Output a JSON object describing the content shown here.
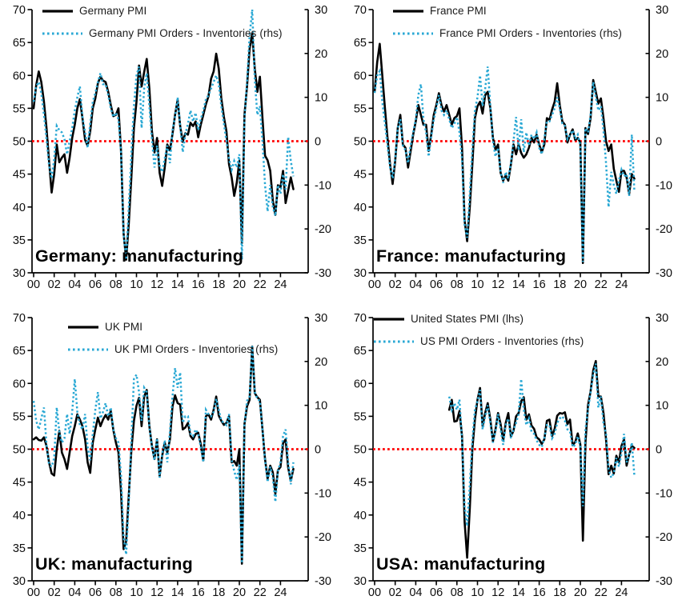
{
  "colors": {
    "pmi_line": "#000000",
    "orders_line": "#29A8D4",
    "reference_line": "#FF0000",
    "text": "#0d0d0d"
  },
  "panels": [
    {
      "id": "germany",
      "corner_label": "Germany: manufacturing",
      "legend": [
        "Germany PMI",
        "Germany PMI Orders - Inventories (rhs)"
      ]
    },
    {
      "id": "france",
      "corner_label": "France: manufacturing",
      "legend": [
        "France PMI",
        "France PMI Orders - Inventories (rhs)"
      ]
    },
    {
      "id": "uk",
      "corner_label": "UK: manufacturing",
      "legend": [
        "UK PMI",
        "UK PMI Orders - Inventories (rhs)"
      ]
    },
    {
      "id": "usa",
      "corner_label": "USA: manufacturing",
      "legend": [
        "United States PMI (lhs)",
        "US PMI Orders - Inventories (rhs)"
      ]
    }
  ],
  "chart_data": [
    {
      "type": "line",
      "title": "Germany: manufacturing",
      "x_start": 2000,
      "x_step": 0.25,
      "x_end": 2025.25,
      "left_axis": {
        "min": 30,
        "max": 70,
        "step": 5
      },
      "right_axis": {
        "min": -30,
        "max": 30,
        "step": 10
      },
      "x_ticks": {
        "start": 2000,
        "end": 2024,
        "step": 2,
        "labels": [
          "00",
          "02",
          "04",
          "06",
          "08",
          "10",
          "12",
          "14",
          "16",
          "18",
          "20",
          "22",
          "24"
        ]
      },
      "reference_line": {
        "axis": "left",
        "value": 50
      },
      "series": [
        {
          "name": "Germany PMI",
          "axis": "left",
          "style": "solid",
          "color": "#000000",
          "values": [
            55.0,
            58.5,
            60.6,
            59.0,
            56.0,
            52.0,
            47.0,
            42.2,
            45.0,
            49.5,
            46.8,
            47.5,
            48.0,
            45.2,
            47.5,
            50.5,
            52.5,
            55.0,
            56.4,
            53.5,
            50.2,
            49.3,
            51.5,
            55.0,
            56.5,
            58.8,
            59.8,
            59.2,
            59.0,
            57.5,
            55.5,
            53.8,
            54.0,
            55.0,
            48.5,
            36.0,
            32.0,
            37.5,
            44.5,
            52.0,
            56.0,
            61.5,
            58.3,
            60.5,
            62.5,
            58.0,
            51.5,
            48.3,
            50.5,
            45.2,
            43.2,
            46.0,
            49.5,
            48.6,
            51.1,
            54.0,
            56.3,
            52.3,
            49.9,
            51.2,
            51.0,
            52.8,
            52.3,
            53.0,
            50.6,
            52.5,
            54.0,
            55.6,
            56.8,
            59.5,
            60.6,
            63.3,
            61.0,
            56.5,
            53.7,
            51.5,
            46.5,
            44.5,
            41.7,
            43.7,
            47.0,
            34.5,
            54.0,
            58.3,
            64.0,
            66.4,
            61.0,
            57.5,
            59.8,
            53.5,
            47.8,
            47.1,
            45.5,
            41.0,
            38.8,
            43.3,
            43.0,
            45.5,
            40.6,
            42.5,
            44.5,
            42.7
          ]
        },
        {
          "name": "Germany PMI Orders - Inventories (rhs)",
          "axis": "right",
          "style": "dotted",
          "color": "#29A8D4",
          "values": [
            9.0,
            12.5,
            13.5,
            11.0,
            6.0,
            0.5,
            -5.5,
            -8.5,
            -4.0,
            3.5,
            2.5,
            2.0,
            0.5,
            -3.0,
            0.0,
            3.0,
            7.0,
            10.0,
            12.5,
            5.5,
            2.0,
            -1.5,
            4.0,
            9.0,
            11.0,
            13.5,
            15.5,
            13.0,
            13.0,
            10.5,
            7.5,
            5.5,
            6.5,
            5.0,
            -2.5,
            -21.0,
            -27.0,
            -15.0,
            -3.0,
            8.0,
            15.0,
            17.0,
            3.0,
            12.0,
            15.5,
            8.0,
            0.5,
            -6.0,
            -1.0,
            -5.5,
            -7.0,
            -4.0,
            -1.0,
            -5.0,
            2.5,
            5.5,
            10.0,
            3.5,
            -2.5,
            1.5,
            4.0,
            7.0,
            4.5,
            6.5,
            2.5,
            5.0,
            7.0,
            9.5,
            10.5,
            12.0,
            13.5,
            15.0,
            13.0,
            8.0,
            4.0,
            0.0,
            -4.0,
            -6.5,
            -4.5,
            -6.0,
            -3.0,
            -27.0,
            5.0,
            13.5,
            24.0,
            30.0,
            14.0,
            6.0,
            8.0,
            0.0,
            -10.0,
            -16.0,
            -10.0,
            -15.0,
            -17.0,
            -10.0,
            -12.0,
            -7.5,
            -11.0,
            1.0,
            -4.5,
            -8.0
          ]
        }
      ]
    },
    {
      "type": "line",
      "title": "France: manufacturing",
      "x_start": 2000,
      "x_step": 0.25,
      "x_end": 2025.25,
      "left_axis": {
        "min": 30,
        "max": 70,
        "step": 5
      },
      "right_axis": {
        "min": -30,
        "max": 30,
        "step": 10
      },
      "x_ticks": {
        "start": 2000,
        "end": 2024,
        "step": 2,
        "labels": [
          "00",
          "02",
          "04",
          "06",
          "08",
          "10",
          "12",
          "14",
          "16",
          "18",
          "20",
          "22",
          "24"
        ]
      },
      "reference_line": {
        "axis": "left",
        "value": 50
      },
      "series": [
        {
          "name": "France PMI",
          "axis": "left",
          "style": "solid",
          "color": "#000000",
          "values": [
            57.5,
            62.0,
            64.8,
            60.0,
            55.0,
            50.5,
            46.5,
            43.5,
            47.0,
            52.0,
            54.0,
            49.5,
            49.0,
            46.0,
            48.5,
            51.0,
            53.0,
            55.5,
            54.0,
            52.5,
            52.5,
            48.5,
            51.0,
            54.0,
            55.5,
            57.3,
            55.5,
            54.5,
            55.5,
            54.0,
            52.5,
            53.5,
            53.8,
            55.0,
            49.0,
            38.0,
            34.8,
            40.0,
            46.5,
            53.5,
            55.3,
            56.0,
            54.2,
            57.0,
            57.5,
            55.0,
            50.5,
            48.7,
            49.5,
            45.2,
            44.0,
            44.8,
            44.0,
            46.5,
            49.5,
            48.0,
            49.5,
            48.2,
            47.5,
            48.0,
            49.0,
            50.5,
            49.8,
            51.0,
            49.5,
            48.3,
            49.5,
            53.5,
            53.2,
            54.8,
            56.0,
            58.8,
            55.5,
            53.0,
            52.5,
            49.8,
            51.0,
            51.8,
            50.2,
            50.5,
            49.8,
            31.5,
            52.0,
            51.1,
            53.5,
            59.3,
            57.5,
            55.7,
            56.5,
            53.5,
            50.0,
            48.5,
            49.5,
            45.8,
            44.0,
            42.3,
            45.5,
            45.5,
            44.5,
            42.0,
            45.0,
            44.3
          ]
        },
        {
          "name": "France PMI Orders - Inventories (rhs)",
          "axis": "right",
          "style": "dotted",
          "color": "#29A8D4",
          "values": [
            11.0,
            15.0,
            16.0,
            9.0,
            4.0,
            -1.0,
            -6.0,
            -8.5,
            -4.0,
            3.0,
            5.0,
            -1.0,
            -2.0,
            -5.0,
            -1.0,
            2.0,
            5.0,
            10.5,
            13.0,
            5.0,
            2.0,
            -3.5,
            1.0,
            5.0,
            7.5,
            10.5,
            7.0,
            6.0,
            7.0,
            5.0,
            3.0,
            4.0,
            5.5,
            2.0,
            -4.0,
            -19.0,
            -22.0,
            -12.0,
            -2.0,
            7.0,
            10.0,
            15.0,
            8.0,
            12.0,
            17.0,
            8.0,
            0.0,
            -3.5,
            -1.5,
            -7.0,
            -9.5,
            -7.0,
            -8.5,
            -5.0,
            0.0,
            5.5,
            -2.0,
            5.0,
            -2.5,
            2.0,
            -1.0,
            1.5,
            0.5,
            2.0,
            -1.5,
            -3.0,
            0.5,
            4.5,
            4.5,
            6.0,
            7.5,
            10.0,
            7.5,
            4.0,
            3.5,
            0.5,
            1.5,
            2.5,
            0.5,
            1.5,
            -1.0,
            -27.5,
            3.0,
            2.0,
            6.0,
            13.5,
            10.0,
            7.0,
            8.0,
            2.5,
            -5.0,
            -15.0,
            -7.0,
            -10.0,
            -12.0,
            -9.0,
            -6.5,
            -8.0,
            -7.5,
            -12.5,
            1.5,
            -11.5
          ]
        }
      ]
    },
    {
      "type": "line",
      "title": "UK: manufacturing",
      "x_start": 2000,
      "x_step": 0.25,
      "x_end": 2025.25,
      "left_axis": {
        "min": 30,
        "max": 70,
        "step": 5
      },
      "right_axis": {
        "min": -30,
        "max": 30,
        "step": 10
      },
      "x_ticks": {
        "start": 2000,
        "end": 2024,
        "step": 2,
        "labels": [
          "00",
          "02",
          "04",
          "06",
          "08",
          "10",
          "12",
          "14",
          "16",
          "18",
          "20",
          "22",
          "24"
        ]
      },
      "reference_line": {
        "axis": "left",
        "value": 50
      },
      "series": [
        {
          "name": "UK PMI",
          "axis": "left",
          "style": "solid",
          "color": "#000000",
          "values": [
            51.5,
            51.8,
            51.4,
            51.3,
            51.8,
            50.5,
            48.0,
            46.3,
            46.0,
            50.0,
            52.8,
            49.5,
            48.5,
            47.0,
            49.5,
            52.0,
            53.5,
            55.3,
            54.5,
            53.5,
            51.5,
            48.0,
            46.4,
            51.0,
            53.0,
            54.8,
            53.5,
            54.5,
            55.2,
            54.5,
            55.8,
            52.9,
            51.0,
            49.5,
            43.5,
            34.8,
            36.0,
            43.0,
            49.8,
            54.3,
            56.6,
            57.8,
            53.5,
            58.0,
            59.0,
            53.5,
            50.5,
            48.5,
            51.5,
            45.9,
            49.0,
            51.0,
            49.5,
            51.5,
            56.5,
            58.2,
            57.0,
            56.8,
            53.0,
            53.3,
            54.0,
            52.0,
            51.5,
            52.3,
            52.5,
            50.8,
            48.3,
            55.0,
            55.3,
            54.5,
            56.0,
            58.0,
            55.1,
            54.3,
            53.7,
            54.0,
            55.0,
            48.0,
            48.2,
            47.5,
            50.0,
            32.6,
            53.8,
            56.5,
            57.5,
            65.6,
            58.5,
            57.9,
            57.5,
            53.0,
            48.5,
            45.5,
            47.5,
            46.5,
            43.2,
            46.8,
            47.3,
            50.9,
            51.5,
            47.2,
            45.2,
            47.0
          ]
        },
        {
          "name": "UK PMI Orders - Inventories (rhs)",
          "axis": "right",
          "style": "dotted",
          "color": "#29A8D4",
          "values": [
            11.0,
            6.5,
            4.5,
            7.0,
            9.5,
            1.0,
            -3.5,
            -4.0,
            -2.0,
            9.5,
            4.0,
            1.5,
            2.5,
            8.0,
            3.5,
            8.5,
            16.0,
            8.5,
            5.5,
            4.5,
            8.0,
            0.5,
            -2.5,
            3.5,
            9.0,
            13.0,
            7.0,
            8.5,
            10.5,
            7.5,
            9.5,
            4.5,
            2.5,
            1.5,
            -6.0,
            -20.0,
            -24.0,
            -12.0,
            2.0,
            16.0,
            17.0,
            13.0,
            6.5,
            14.0,
            13.0,
            5.0,
            0.5,
            -2.5,
            2.5,
            -6.5,
            -1.0,
            2.0,
            -3.0,
            4.0,
            12.0,
            18.5,
            14.0,
            17.5,
            6.0,
            7.5,
            7.5,
            3.5,
            3.0,
            4.5,
            3.5,
            0.5,
            -3.0,
            9.0,
            8.0,
            7.5,
            8.5,
            11.5,
            9.0,
            6.5,
            6.0,
            5.5,
            8.0,
            -2.5,
            -5.0,
            -7.0,
            -3.5,
            -26.0,
            5.5,
            11.0,
            12.0,
            23.5,
            13.0,
            11.5,
            11.0,
            4.5,
            -2.5,
            -7.5,
            -4.0,
            -6.5,
            -12.0,
            -5.0,
            -3.0,
            3.0,
            4.5,
            -3.0,
            -8.0,
            -3.0
          ]
        }
      ]
    },
    {
      "type": "line",
      "title": "USA: manufacturing",
      "x_start": 2000,
      "x_step": 0.25,
      "x_end": 2025.25,
      "left_axis": {
        "min": 30,
        "max": 70,
        "step": 5
      },
      "right_axis": {
        "min": -30,
        "max": 30,
        "step": 10
      },
      "x_ticks": {
        "start": 2000,
        "end": 2024,
        "step": 2,
        "labels": [
          "00",
          "02",
          "04",
          "06",
          "08",
          "10",
          "12",
          "14",
          "16",
          "18",
          "20",
          "22",
          "24"
        ]
      },
      "reference_line": {
        "axis": "left",
        "value": 50
      },
      "series": [
        {
          "name": "United States PMI (lhs)",
          "axis": "left",
          "style": "solid",
          "color": "#000000",
          "values": [
            null,
            null,
            null,
            null,
            null,
            null,
            null,
            null,
            null,
            null,
            null,
            null,
            null,
            null,
            null,
            null,
            null,
            null,
            null,
            null,
            null,
            null,
            null,
            null,
            null,
            null,
            null,
            null,
            null,
            56.0,
            57.5,
            54.2,
            54.3,
            55.8,
            52.0,
            39.0,
            33.5,
            41.0,
            50.0,
            54.5,
            57.5,
            59.3,
            53.5,
            55.5,
            57.0,
            54.5,
            51.2,
            53.0,
            55.5,
            53.8,
            51.3,
            54.0,
            55.5,
            51.9,
            52.8,
            55.0,
            55.5,
            57.3,
            57.9,
            54.5,
            55.3,
            53.6,
            53.1,
            51.8,
            51.5,
            50.8,
            51.5,
            54.3,
            54.5,
            52.0,
            53.1,
            55.1,
            55.5,
            55.4,
            55.6,
            53.8,
            54.5,
            50.6,
            51.1,
            52.4,
            50.7,
            36.1,
            51.0,
            56.7,
            58.8,
            62.0,
            63.4,
            58.0,
            58.0,
            55.5,
            51.5,
            46.2,
            47.5,
            46.3,
            49.0,
            48.0,
            50.5,
            51.5,
            47.5,
            49.2,
            50.5,
            50.2
          ]
        },
        {
          "name": "US PMI Orders - Inventories (rhs)",
          "axis": "right",
          "style": "dotted",
          "color": "#29A8D4",
          "values": [
            null,
            null,
            null,
            null,
            null,
            null,
            null,
            null,
            null,
            null,
            null,
            null,
            null,
            null,
            null,
            null,
            null,
            null,
            null,
            null,
            null,
            null,
            null,
            null,
            null,
            null,
            null,
            null,
            null,
            12.0,
            9.0,
            10.5,
            9.0,
            11.3,
            2.0,
            -13.0,
            -17.5,
            -8.0,
            2.0,
            9.0,
            11.0,
            13.5,
            4.5,
            7.5,
            10.0,
            6.0,
            1.5,
            4.0,
            8.0,
            4.5,
            1.0,
            5.5,
            7.0,
            2.5,
            4.5,
            6.0,
            8.0,
            16.0,
            9.0,
            5.5,
            7.0,
            4.0,
            3.5,
            2.0,
            1.0,
            0.5,
            2.5,
            5.5,
            5.5,
            2.5,
            3.5,
            6.0,
            7.0,
            7.5,
            6.5,
            4.5,
            4.0,
            0.5,
            1.0,
            3.0,
            0.5,
            -13.0,
            4.5,
            9.0,
            13.0,
            17.0,
            19.5,
            9.5,
            12.0,
            6.0,
            3.5,
            -4.5,
            -6.5,
            -5.5,
            -2.0,
            -4.0,
            -1.0,
            3.5,
            -3.0,
            -1.5,
            1.5,
            -6.0
          ]
        }
      ]
    }
  ]
}
